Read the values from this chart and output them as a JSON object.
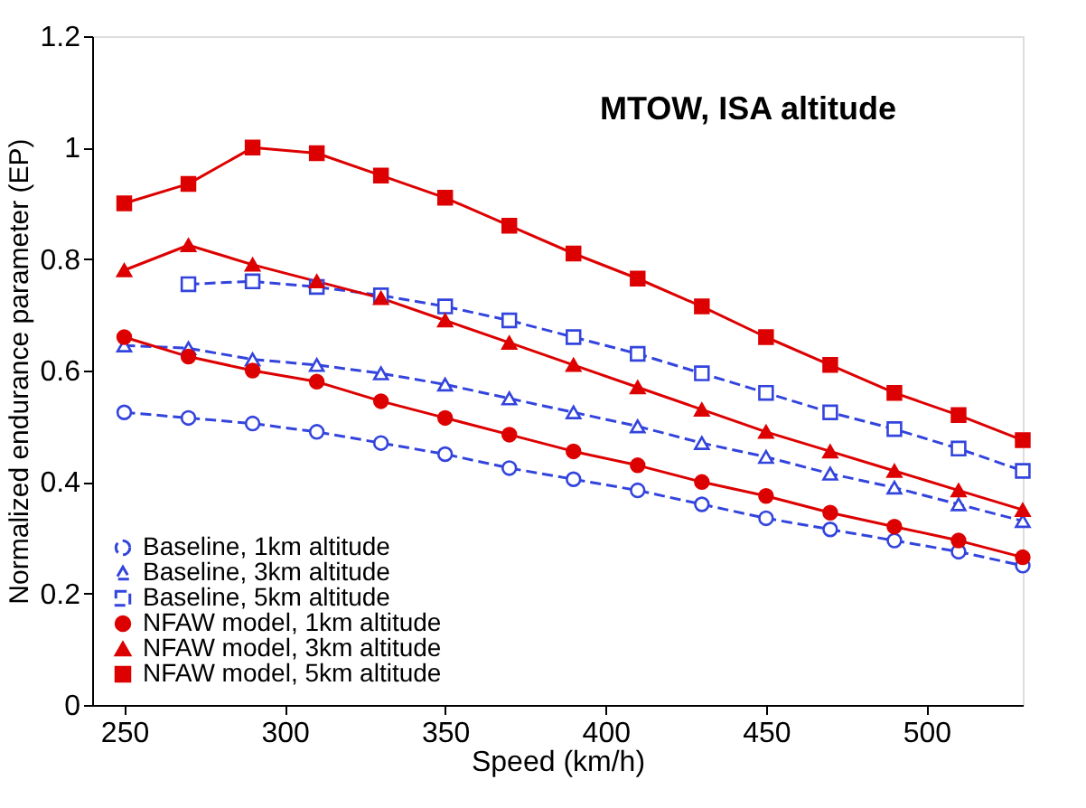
{
  "chart_data": {
    "type": "line",
    "xlabel": "Speed (km/h)",
    "ylabel": "Normalized endurance parameter (EP)",
    "annotations": [
      "MTOW, ISA altitude"
    ],
    "x": [
      250,
      270,
      290,
      310,
      330,
      350,
      370,
      390,
      410,
      430,
      450,
      470,
      490,
      510,
      530
    ],
    "xlim": [
      240,
      530
    ],
    "xticks": [
      250,
      300,
      350,
      400,
      450,
      500
    ],
    "ylim": [
      0,
      1.2
    ],
    "yticks": [
      {
        "value": 0,
        "label": "0"
      },
      0.2,
      0.4,
      0.6,
      0.8,
      {
        "value": 1,
        "label": "1"
      },
      1.2
    ],
    "grid": false,
    "legend": "bottom left",
    "series": [
      {
        "name": "Baseline, 1km altitude",
        "color": "#3344dd",
        "marker": "circle",
        "line_style": "dashed",
        "values": [
          0.525,
          0.515,
          0.505,
          0.49,
          0.47,
          0.45,
          0.425,
          0.405,
          0.385,
          0.36,
          0.335,
          0.315,
          0.295,
          0.275,
          0.25
        ]
      },
      {
        "name": "Baseline, 3km altitude",
        "color": "#3344dd",
        "marker": "triangle",
        "line_style": "dashed",
        "values": [
          0.645,
          0.64,
          0.62,
          0.61,
          0.595,
          0.575,
          0.55,
          0.525,
          0.5,
          0.47,
          0.445,
          0.415,
          0.39,
          0.36,
          0.33
        ]
      },
      {
        "name": "Baseline, 5km altitude",
        "color": "#3344dd",
        "marker": "square",
        "line_style": "dashed",
        "values": [
          null,
          0.755,
          0.76,
          0.75,
          0.735,
          0.715,
          0.69,
          0.66,
          0.63,
          0.595,
          0.56,
          0.525,
          0.495,
          0.46,
          0.42
        ]
      },
      {
        "name": "NFAW model, 1km altitude",
        "color": "#dd0000",
        "marker": "circle",
        "line_style": "solid",
        "values": [
          0.66,
          0.625,
          0.6,
          0.58,
          0.545,
          0.515,
          0.485,
          0.455,
          0.43,
          0.4,
          0.375,
          0.345,
          0.32,
          0.295,
          0.265
        ]
      },
      {
        "name": "NFAW model, 3km altitude",
        "color": "#dd0000",
        "marker": "triangle",
        "line_style": "solid",
        "values": [
          0.78,
          0.825,
          0.79,
          0.76,
          0.73,
          0.69,
          0.65,
          0.61,
          0.57,
          0.53,
          0.49,
          0.455,
          0.42,
          0.385,
          0.35
        ]
      },
      {
        "name": "NFAW model, 5km altitude",
        "color": "#dd0000",
        "marker": "square",
        "line_style": "solid",
        "values": [
          0.9,
          0.935,
          1.0,
          0.99,
          0.95,
          0.91,
          0.86,
          0.81,
          0.765,
          0.715,
          0.66,
          0.61,
          0.56,
          0.52,
          0.475
        ]
      }
    ]
  }
}
